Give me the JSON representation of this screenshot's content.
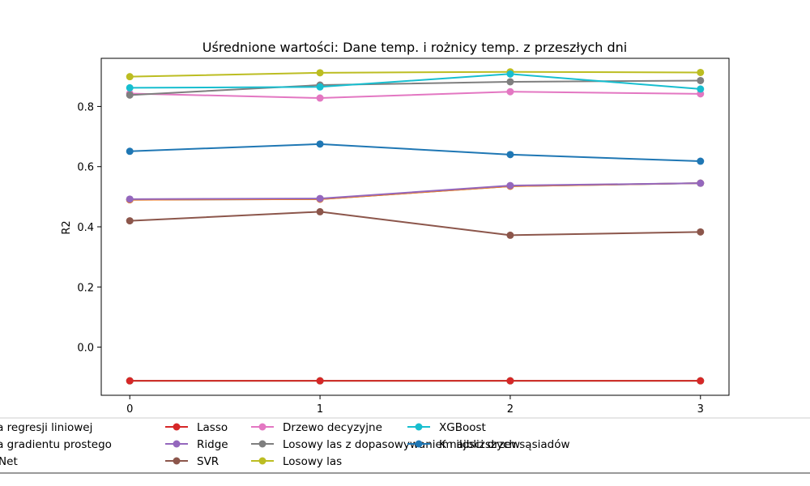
{
  "chart_data": {
    "type": "line",
    "title": "Uśrednione wartości: Dane temp. i rożnicy temp. z przeszłych dni",
    "xlabel": "",
    "ylabel": "R2",
    "x": [
      0,
      1,
      2,
      3
    ],
    "xlim": [
      -0.15,
      3.15
    ],
    "ylim": [
      -0.16,
      0.96
    ],
    "xticks": [
      "0",
      "1",
      "2",
      "3"
    ],
    "yticks": [
      "0.0",
      "0.2",
      "0.4",
      "0.6",
      "0.8"
    ],
    "grid": false,
    "legend_position": "bottom",
    "series": [
      {
        "name": "Metoda regresji liniowej",
        "color": "#1f77b4",
        "values": [
          0.49,
          0.492,
          0.535,
          0.545
        ]
      },
      {
        "name": "Metoda gradientu prostego",
        "color": "#ff7f0e",
        "values": [
          0.49,
          0.492,
          0.535,
          0.545
        ]
      },
      {
        "name": "ElasticNet",
        "color": "#2ca02c",
        "values": [
          -0.112,
          -0.112,
          -0.112,
          -0.112
        ]
      },
      {
        "name": "Lasso",
        "color": "#d62728",
        "values": [
          -0.112,
          -0.112,
          -0.112,
          -0.112
        ]
      },
      {
        "name": "Ridge",
        "color": "#9467bd",
        "values": [
          0.492,
          0.494,
          0.537,
          0.545
        ]
      },
      {
        "name": "SVR",
        "color": "#8c564b",
        "values": [
          0.42,
          0.45,
          0.372,
          0.383
        ]
      },
      {
        "name": "Drzewo decyzyjne",
        "color": "#e377c2",
        "values": [
          0.843,
          0.828,
          0.849,
          0.842
        ]
      },
      {
        "name": "Losowy las z dopasowywaniem ilosci drzew",
        "color": "#7f7f7f",
        "values": [
          0.838,
          0.871,
          0.882,
          0.886
        ]
      },
      {
        "name": "Losowy las",
        "color": "#bcbd22",
        "values": [
          0.899,
          0.912,
          0.915,
          0.913
        ]
      },
      {
        "name": "XGBoost",
        "color": "#17becf",
        "values": [
          0.862,
          0.865,
          0.908,
          0.858
        ]
      },
      {
        "name": "K najbliższych sąsiadów",
        "color": "#1f77b4",
        "values": [
          0.651,
          0.675,
          0.64,
          0.618
        ]
      }
    ]
  }
}
